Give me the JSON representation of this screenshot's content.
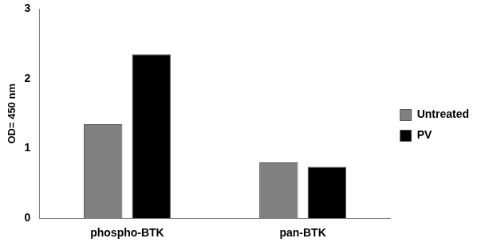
{
  "chart_data": {
    "type": "bar",
    "categories": [
      "phospho-BTK",
      "pan-BTK"
    ],
    "series": [
      {
        "name": "Untreated",
        "color": "#808080",
        "values": [
          1.35,
          0.8
        ]
      },
      {
        "name": "PV",
        "color": "#000000",
        "values": [
          2.35,
          0.74
        ]
      }
    ],
    "y_label": "OD= 450 nm",
    "ylim": [
      0,
      3
    ],
    "yticks": [
      0,
      1,
      2,
      3
    ],
    "grid": false,
    "legend": "right"
  }
}
